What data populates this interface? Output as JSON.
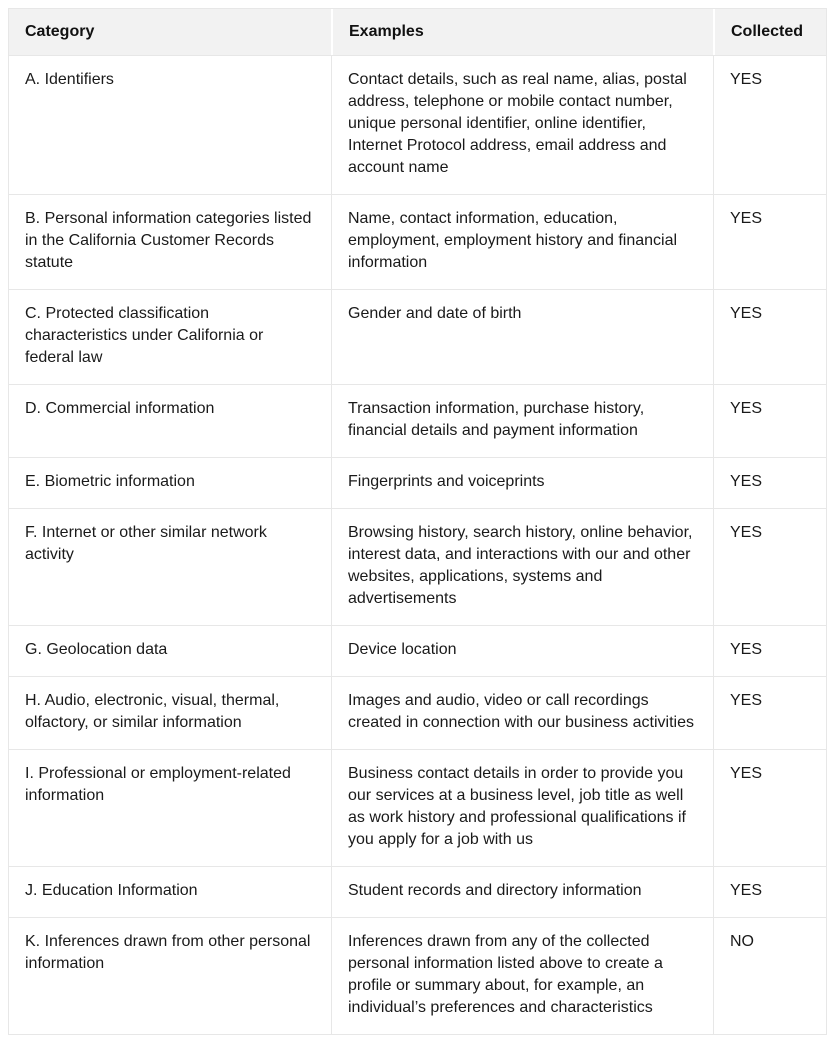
{
  "colors": {
    "header_background": "#F2F2F2",
    "border": "#E7E7E7",
    "text": "#1A1A1A",
    "page_background": "#FFFFFF"
  },
  "table": {
    "headers": {
      "category": "Category",
      "examples": "Examples",
      "collected": "Collected"
    },
    "rows": [
      {
        "category": "A. Identifiers",
        "examples": "Contact details, such as real name, alias, postal address, telephone or mobile contact number, unique personal identifier, online identifier, Internet Protocol address, email address and account name",
        "collected": "YES"
      },
      {
        "category": "B. Personal information categories listed in the California Customer Records statute",
        "examples": "Name, contact information, education, employment, employment history and financial information",
        "collected": "YES"
      },
      {
        "category": "C. Protected classification characteristics under California or federal law",
        "examples": "Gender and date of birth",
        "collected": "YES"
      },
      {
        "category": "D. Commercial information",
        "examples": "Transaction information, purchase history, financial details and payment information",
        "collected": "YES"
      },
      {
        "category": "E. Biometric information",
        "examples": "Fingerprints and voiceprints",
        "collected": "YES"
      },
      {
        "category": "F. Internet or other similar network activity",
        "examples": "Browsing history, search history, online behavior, interest data, and interactions with our and other websites, applications, systems and advertisements",
        "collected": "YES"
      },
      {
        "category": "G. Geolocation data",
        "examples": "Device location",
        "collected": "YES"
      },
      {
        "category": "H. Audio, electronic, visual, thermal, olfactory, or similar information",
        "examples": "Images and audio, video or call recordings created in connection with our business activities",
        "collected": "YES"
      },
      {
        "category": "I. Professional or employment-related information",
        "examples": "Business contact details in order to provide you our services at a business level, job title as well as work history and professional qualifications if you apply for a job with us",
        "collected": "YES"
      },
      {
        "category": "J. Education Information",
        "examples": "Student records and directory information",
        "collected": "YES"
      },
      {
        "category": "K. Inferences drawn from other personal information",
        "examples": "Inferences drawn from any of the collected personal information listed above to create a profile or summary about, for example, an individual’s preferences and characteristics",
        "collected": "NO"
      }
    ]
  }
}
